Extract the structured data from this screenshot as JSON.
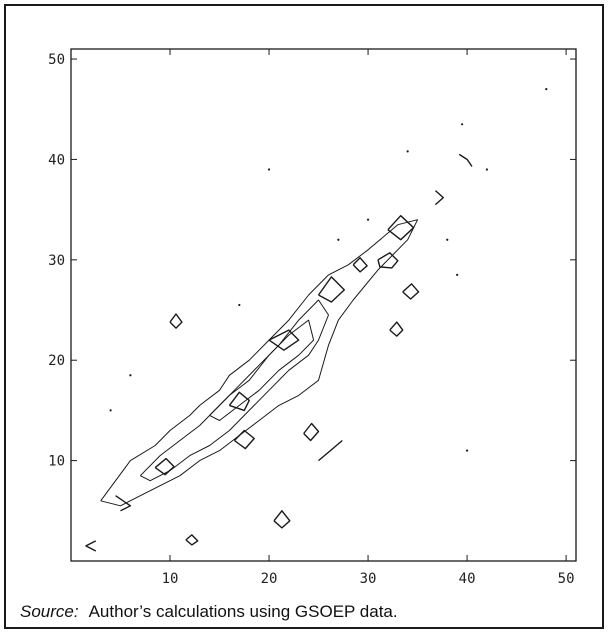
{
  "chart_data": {
    "type": "contour",
    "title": "",
    "xlabel": "",
    "ylabel": "",
    "xlim": [
      0,
      51
    ],
    "ylim": [
      0,
      51
    ],
    "xticks": [
      10,
      20,
      30,
      40,
      50
    ],
    "yticks": [
      10,
      20,
      30,
      40,
      50
    ],
    "grid": false,
    "line_color": "#1a1a1a",
    "contours": [
      {
        "level": 1,
        "points": [
          [
            3,
            6
          ],
          [
            6,
            10
          ],
          [
            8.5,
            11.5
          ],
          [
            10,
            13
          ],
          [
            12,
            14.5
          ],
          [
            13,
            15.5
          ],
          [
            15,
            17
          ],
          [
            16,
            18.5
          ],
          [
            18,
            20
          ],
          [
            20,
            22
          ],
          [
            22,
            24
          ],
          [
            24,
            26.5
          ],
          [
            26,
            28.5
          ],
          [
            28,
            29.5
          ],
          [
            30,
            31
          ],
          [
            33,
            33.5
          ],
          [
            35,
            34
          ],
          [
            34,
            32
          ],
          [
            31,
            29
          ],
          [
            28.5,
            26
          ],
          [
            27,
            24
          ],
          [
            26,
            21.5
          ],
          [
            25,
            18
          ],
          [
            23,
            16.5
          ],
          [
            21,
            15.5
          ],
          [
            19,
            14
          ],
          [
            17,
            12.5
          ],
          [
            15,
            11
          ],
          [
            13,
            10
          ],
          [
            11,
            8.5
          ],
          [
            9,
            7.5
          ],
          [
            7,
            6.5
          ],
          [
            5,
            5.5
          ],
          [
            3,
            6
          ]
        ]
      },
      {
        "level": 2,
        "points": [
          [
            7,
            8.5
          ],
          [
            9,
            10.5
          ],
          [
            11,
            12
          ],
          [
            13,
            13.5
          ],
          [
            15,
            15.5
          ],
          [
            17,
            17.5
          ],
          [
            19,
            19.5
          ],
          [
            21,
            21.5
          ],
          [
            23,
            24
          ],
          [
            25,
            26
          ],
          [
            26,
            24.5
          ],
          [
            25,
            22
          ],
          [
            24,
            20.5
          ],
          [
            22,
            19
          ],
          [
            20,
            17
          ],
          [
            18,
            15
          ],
          [
            16,
            13
          ],
          [
            14,
            11.5
          ],
          [
            12,
            10.5
          ],
          [
            10,
            9
          ],
          [
            8,
            8
          ],
          [
            7,
            8.5
          ]
        ]
      },
      {
        "level": 3,
        "points": [
          [
            14,
            14.5
          ],
          [
            16,
            16.5
          ],
          [
            18,
            18
          ],
          [
            20,
            20.5
          ],
          [
            22,
            22.5
          ],
          [
            24,
            24
          ],
          [
            24.5,
            22
          ],
          [
            23,
            20.5
          ],
          [
            21,
            19
          ],
          [
            19,
            17
          ],
          [
            17,
            15.5
          ],
          [
            15,
            14
          ],
          [
            14,
            14.5
          ]
        ]
      },
      {
        "level": 4,
        "points": [
          [
            16,
            15.5
          ],
          [
            17,
            16.8
          ],
          [
            18,
            16
          ],
          [
            17.5,
            15
          ],
          [
            16,
            15.5
          ]
        ]
      },
      {
        "level": 4,
        "points": [
          [
            8.5,
            9.3
          ],
          [
            9.6,
            10.2
          ],
          [
            10.4,
            9.4
          ],
          [
            9.5,
            8.6
          ],
          [
            8.5,
            9.3
          ]
        ]
      },
      {
        "level": 4,
        "points": [
          [
            16.5,
            12
          ],
          [
            17.5,
            13
          ],
          [
            18.5,
            12.2
          ],
          [
            17.6,
            11.2
          ],
          [
            16.5,
            12
          ]
        ]
      },
      {
        "level": 4,
        "points": [
          [
            20,
            22
          ],
          [
            22,
            23
          ],
          [
            23,
            22
          ],
          [
            21.5,
            21
          ],
          [
            20,
            22
          ]
        ]
      },
      {
        "level": 5,
        "points": [
          [
            25,
            26.5
          ],
          [
            26.3,
            28.3
          ],
          [
            27.6,
            27
          ],
          [
            26.3,
            25.8
          ],
          [
            25,
            26.5
          ]
        ]
      },
      {
        "level": 5,
        "points": [
          [
            32,
            33
          ],
          [
            33.3,
            34.4
          ],
          [
            34.6,
            33.2
          ],
          [
            33.3,
            32
          ],
          [
            32,
            33
          ]
        ]
      },
      {
        "level": 6,
        "points": [
          [
            23.5,
            12.7
          ],
          [
            24.3,
            13.7
          ],
          [
            25,
            12.9
          ],
          [
            24.2,
            12
          ],
          [
            23.5,
            12.7
          ]
        ]
      },
      {
        "level": 6,
        "points": [
          [
            10,
            23.8
          ],
          [
            10.6,
            24.6
          ],
          [
            11.2,
            23.8
          ],
          [
            10.6,
            23.2
          ],
          [
            10,
            23.8
          ]
        ]
      },
      {
        "level": 6,
        "points": [
          [
            32.2,
            23
          ],
          [
            32.9,
            23.8
          ],
          [
            33.5,
            23
          ],
          [
            32.9,
            22.4
          ],
          [
            32.2,
            23
          ]
        ]
      },
      {
        "level": 6,
        "points": [
          [
            20.5,
            4
          ],
          [
            21.3,
            5
          ],
          [
            22.1,
            4
          ],
          [
            21.3,
            3.3
          ],
          [
            20.5,
            4
          ]
        ]
      },
      {
        "level": 6,
        "points": [
          [
            11.6,
            2.1
          ],
          [
            12.2,
            2.6
          ],
          [
            12.8,
            2
          ],
          [
            12.2,
            1.6
          ],
          [
            11.6,
            2.1
          ]
        ]
      },
      {
        "level": 7,
        "points": [
          [
            31,
            30
          ],
          [
            32.2,
            30.7
          ],
          [
            33,
            29.9
          ],
          [
            32.4,
            29.2
          ],
          [
            31.2,
            29.3
          ],
          [
            31,
            30
          ]
        ]
      },
      {
        "level": 7,
        "points": [
          [
            33.5,
            26.8
          ],
          [
            34.4,
            27.6
          ],
          [
            35.1,
            26.8
          ],
          [
            34.3,
            26.1
          ],
          [
            33.5,
            26.8
          ]
        ]
      },
      {
        "level": 7,
        "points": [
          [
            28.5,
            29.5
          ],
          [
            29.2,
            30.2
          ],
          [
            29.9,
            29.4
          ],
          [
            29.2,
            28.8
          ],
          [
            28.5,
            29.5
          ]
        ]
      },
      {
        "level": 8,
        "points": [
          [
            25,
            10
          ],
          [
            26.2,
            11
          ],
          [
            27.4,
            12
          ]
        ]
      },
      {
        "level": 8,
        "points": [
          [
            5,
            5
          ],
          [
            6,
            5.5
          ],
          [
            4.5,
            6.5
          ]
        ]
      },
      {
        "level": 8,
        "points": [
          [
            2.5,
            1
          ],
          [
            1.5,
            1.5
          ],
          [
            2.5,
            2
          ]
        ]
      },
      {
        "level": 8,
        "points": [
          [
            36.8,
            35.5
          ],
          [
            37.6,
            36.2
          ],
          [
            36.8,
            36.9
          ]
        ]
      },
      {
        "level": 8,
        "points": [
          [
            39.2,
            40.5
          ],
          [
            40,
            40
          ],
          [
            40.5,
            39.3
          ]
        ]
      }
    ],
    "points": [
      [
        48,
        47
      ],
      [
        39.5,
        43.5
      ],
      [
        34,
        40.8
      ],
      [
        20,
        39
      ],
      [
        17,
        25.5
      ],
      [
        38,
        32
      ],
      [
        39,
        28.5
      ],
      [
        42,
        39
      ],
      [
        6,
        18.5
      ],
      [
        4,
        15
      ],
      [
        30,
        34
      ],
      [
        40,
        11
      ],
      [
        27,
        32
      ]
    ]
  }
}
